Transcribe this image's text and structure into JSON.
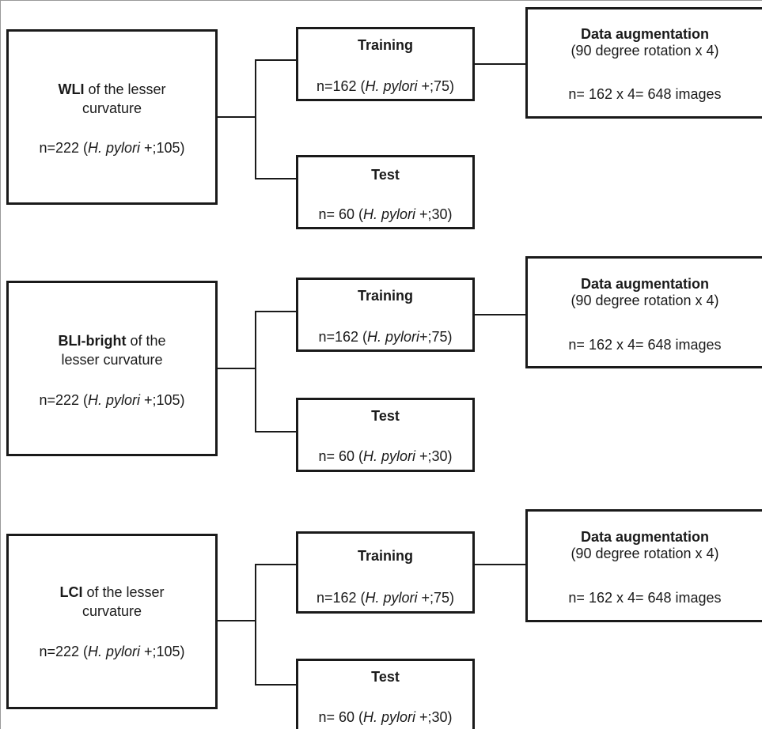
{
  "groups": [
    {
      "source": {
        "name": "WLI",
        "line1_suffix": " of the lesser",
        "line2": "curvature",
        "n_prefix": "n=222 (",
        "species": "H. pylori",
        "n_suffix": " +;105)"
      },
      "training": {
        "title": "Training",
        "n_prefix": "n=162 (",
        "species": "H. pylori",
        "n_suffix": " +;75)"
      },
      "test": {
        "title": "Test",
        "n_prefix": "n= 60 (",
        "species": "H. pylori",
        "n_suffix": " +;30)"
      },
      "augmentation": {
        "title": "Data augmentation",
        "detail": "(90 degree rotation x 4)",
        "count": "n= 162 x 4= 648 images"
      }
    },
    {
      "source": {
        "name": "BLI-bright",
        "line1_suffix": " of the",
        "line2": "lesser curvature",
        "n_prefix": "n=222 (",
        "species": "H. pylori",
        "n_suffix": " +;105)"
      },
      "training": {
        "title": "Training",
        "n_prefix": "n=162 (",
        "species": "H. pylori",
        "n_suffix": "+;75)"
      },
      "test": {
        "title": "Test",
        "n_prefix": "n= 60 (",
        "species": "H. pylori",
        "n_suffix": " +;30)"
      },
      "augmentation": {
        "title": "Data augmentation",
        "detail": "(90 degree rotation x 4)",
        "count": "n= 162 x 4= 648 images"
      }
    },
    {
      "source": {
        "name": "LCI",
        "line1_suffix": " of the lesser",
        "line2": "curvature",
        "n_prefix": "n=222 (",
        "species": "H. pylori",
        "n_suffix": " +;105)"
      },
      "training": {
        "title": "Training",
        "n_prefix": "n=162 (",
        "species": "H. pylori",
        "n_suffix": " +;75)"
      },
      "test": {
        "title": "Test",
        "n_prefix": "n= 60 (",
        "species": "H. pylori",
        "n_suffix": " +;30)"
      },
      "augmentation": {
        "title": "Data augmentation",
        "detail": "(90 degree rotation x 4)",
        "count": "n= 162 x 4= 648 images"
      }
    }
  ]
}
